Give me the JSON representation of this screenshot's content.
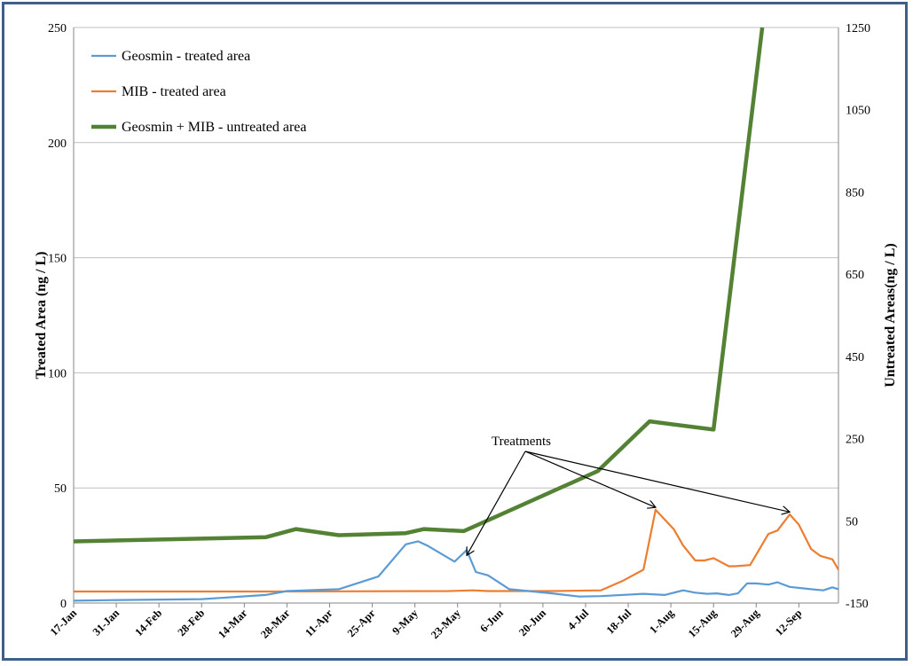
{
  "chart_data": {
    "type": "line",
    "title": "",
    "ylabel": "Treated Area (ng / L)",
    "y2label": "Untreated Areas(ng / L)",
    "ylim": [
      0,
      250
    ],
    "y2lim": [
      -150,
      1250
    ],
    "yticks": [
      0,
      50,
      100,
      150,
      200,
      250
    ],
    "y2ticks": [
      -150,
      50,
      250,
      450,
      650,
      850,
      1050,
      1250
    ],
    "xlim": [
      "2014-01-17",
      "2014-09-25"
    ],
    "xtick_labels": [
      "17-Jan",
      "31-Jan",
      "14-Feb",
      "28-Feb",
      "14-Mar",
      "28-Mar",
      "11-Apr",
      "25-Apr",
      "9-May",
      "23-May",
      "6-Jun",
      "20-Jun",
      "4-Jul",
      "18-Jul",
      "1-Aug",
      "15-Aug",
      "29-Aug",
      "12-Sep"
    ],
    "grid": "horizontal",
    "legend_position": "top-left",
    "annotation": "Treatments",
    "annotation_targets": [
      {
        "series": "Geosmin - treated area",
        "x": "2014-05-26",
        "y": 23
      },
      {
        "series": "MIB - treated area",
        "x": "2014-07-27",
        "y": 40
      },
      {
        "series": "MIB - treated area",
        "x": "2014-09-09",
        "y": 38
      }
    ],
    "series": [
      {
        "name": "Geosmin - treated area",
        "color": "#5b9bd5",
        "axis": "left",
        "x": [
          "2014-01-17",
          "2014-02-01",
          "2014-02-28",
          "2014-03-21",
          "2014-03-28",
          "2014-04-14",
          "2014-04-27",
          "2014-05-06",
          "2014-05-10",
          "2014-05-13",
          "2014-05-22",
          "2014-05-26",
          "2014-05-29",
          "2014-06-02",
          "2014-06-09",
          "2014-06-23",
          "2014-07-02",
          "2014-07-09",
          "2014-07-23",
          "2014-07-30",
          "2014-08-05",
          "2014-08-09",
          "2014-08-13",
          "2014-08-16",
          "2014-08-20",
          "2014-08-23",
          "2014-08-26",
          "2014-08-29",
          "2014-09-02",
          "2014-09-05",
          "2014-09-09",
          "2014-09-16",
          "2014-09-20",
          "2014-09-23",
          "2014-09-25"
        ],
        "values": [
          1,
          1.3,
          1.7,
          3.5,
          5.2,
          6,
          11.5,
          25.5,
          26.8,
          25,
          18,
          23,
          13.5,
          12,
          6,
          4.2,
          2.8,
          3,
          4,
          3.5,
          5.5,
          4.5,
          4,
          4.2,
          3.5,
          4.2,
          8.5,
          8.5,
          8,
          9,
          7,
          6,
          5.5,
          6.8,
          6
        ]
      },
      {
        "name": "MIB - treated area",
        "color": "#ed7d31",
        "axis": "left",
        "x": [
          "2014-01-17",
          "2014-03-21",
          "2014-05-20",
          "2014-05-28",
          "2014-06-02",
          "2014-06-23",
          "2014-07-09",
          "2014-07-16",
          "2014-07-23",
          "2014-07-27",
          "2014-08-02",
          "2014-08-05",
          "2014-08-09",
          "2014-08-12",
          "2014-08-15",
          "2014-08-20",
          "2014-08-22",
          "2014-08-27",
          "2014-09-02",
          "2014-09-05",
          "2014-09-09",
          "2014-09-12",
          "2014-09-16",
          "2014-09-19",
          "2014-09-23",
          "2014-09-25"
        ],
        "values": [
          5,
          5,
          5.2,
          5.5,
          5.2,
          5.2,
          5.5,
          9.5,
          14.5,
          40.5,
          32,
          25,
          18.5,
          18.5,
          19.5,
          16,
          16,
          16.5,
          30,
          31.5,
          38.5,
          34,
          23.5,
          20.5,
          19,
          14.5
        ]
      },
      {
        "name": "Geosmin + MIB - untreated area",
        "color": "#548235",
        "axis": "right",
        "x": [
          "2014-01-17",
          "2014-03-21",
          "2014-03-31",
          "2014-04-14",
          "2014-05-06",
          "2014-05-12",
          "2014-05-25",
          "2014-07-08",
          "2014-07-25",
          "2014-08-15",
          "2014-08-31"
        ],
        "values": [
          0,
          10,
          30,
          15,
          20,
          30,
          25,
          171,
          292,
          272,
          1250
        ]
      }
    ]
  }
}
